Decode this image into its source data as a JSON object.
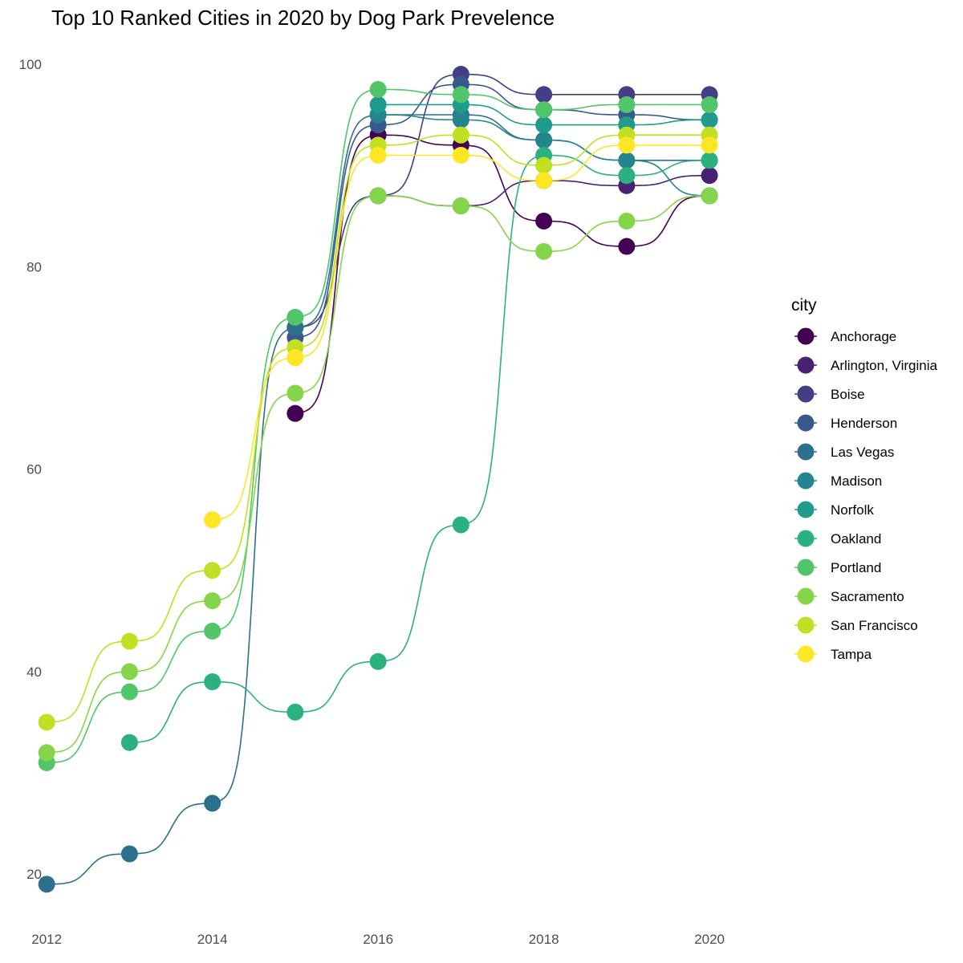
{
  "chart_data": {
    "type": "line",
    "title": "Top 10 Ranked Cities in 2020 by Dog Park Prevelence",
    "xlabel": "",
    "ylabel": "",
    "x": [
      2012,
      2013,
      2014,
      2015,
      2016,
      2017,
      2018,
      2019,
      2020
    ],
    "x_ticks": [
      2012,
      2014,
      2016,
      2018,
      2020
    ],
    "y_ticks": [
      20,
      40,
      60,
      80,
      100
    ],
    "xlim": [
      2011.95,
      2021.2
    ],
    "ylim": [
      15.5,
      101.5
    ],
    "grid": false,
    "legend": {
      "title": "city",
      "position": "right"
    },
    "series": [
      {
        "name": "Anchorage",
        "color": "#440154",
        "values": [
          null,
          null,
          null,
          65.5,
          93,
          92,
          84.5,
          82,
          87
        ]
      },
      {
        "name": "Arlington, Virginia",
        "color": "#482173",
        "values": [
          null,
          null,
          null,
          null,
          87,
          86,
          88.5,
          88,
          89
        ]
      },
      {
        "name": "Boise",
        "color": "#433E85",
        "values": [
          null,
          null,
          null,
          74,
          87,
          99,
          97,
          97,
          97
        ]
      },
      {
        "name": "Henderson",
        "color": "#38598C",
        "values": [
          null,
          null,
          null,
          73,
          94,
          98,
          95.5,
          95,
          94.5
        ]
      },
      {
        "name": "Las Vegas",
        "color": "#2D708E",
        "values": [
          19,
          22,
          27,
          74,
          95,
          95,
          92.5,
          90.5,
          90.5
        ]
      },
      {
        "name": "Madison",
        "color": "#25858E",
        "values": [
          null,
          null,
          null,
          null,
          95,
          94.5,
          92.5,
          90.5,
          87
        ]
      },
      {
        "name": "Norfolk",
        "color": "#1E9B8A",
        "values": [
          null,
          null,
          null,
          null,
          96,
          96,
          94,
          94,
          94.5
        ]
      },
      {
        "name": "Oakland",
        "color": "#2BB07F",
        "values": [
          null,
          33,
          39,
          36,
          41,
          54.5,
          91,
          89,
          90.5
        ]
      },
      {
        "name": "Portland",
        "color": "#51C56A",
        "values": [
          31,
          38,
          44,
          75,
          97.5,
          97,
          95.5,
          96,
          96
        ]
      },
      {
        "name": "Sacramento",
        "color": "#85D54A",
        "values": [
          32,
          40,
          47,
          67.5,
          87,
          86,
          81.5,
          84.5,
          87
        ]
      },
      {
        "name": "San Francisco",
        "color": "#C2DF23",
        "values": [
          35,
          43,
          50,
          72,
          92,
          93,
          90,
          93,
          93
        ]
      },
      {
        "name": "Tampa",
        "color": "#FDE725",
        "values": [
          null,
          null,
          55,
          71,
          91,
          91,
          88.5,
          92,
          92
        ]
      }
    ]
  }
}
